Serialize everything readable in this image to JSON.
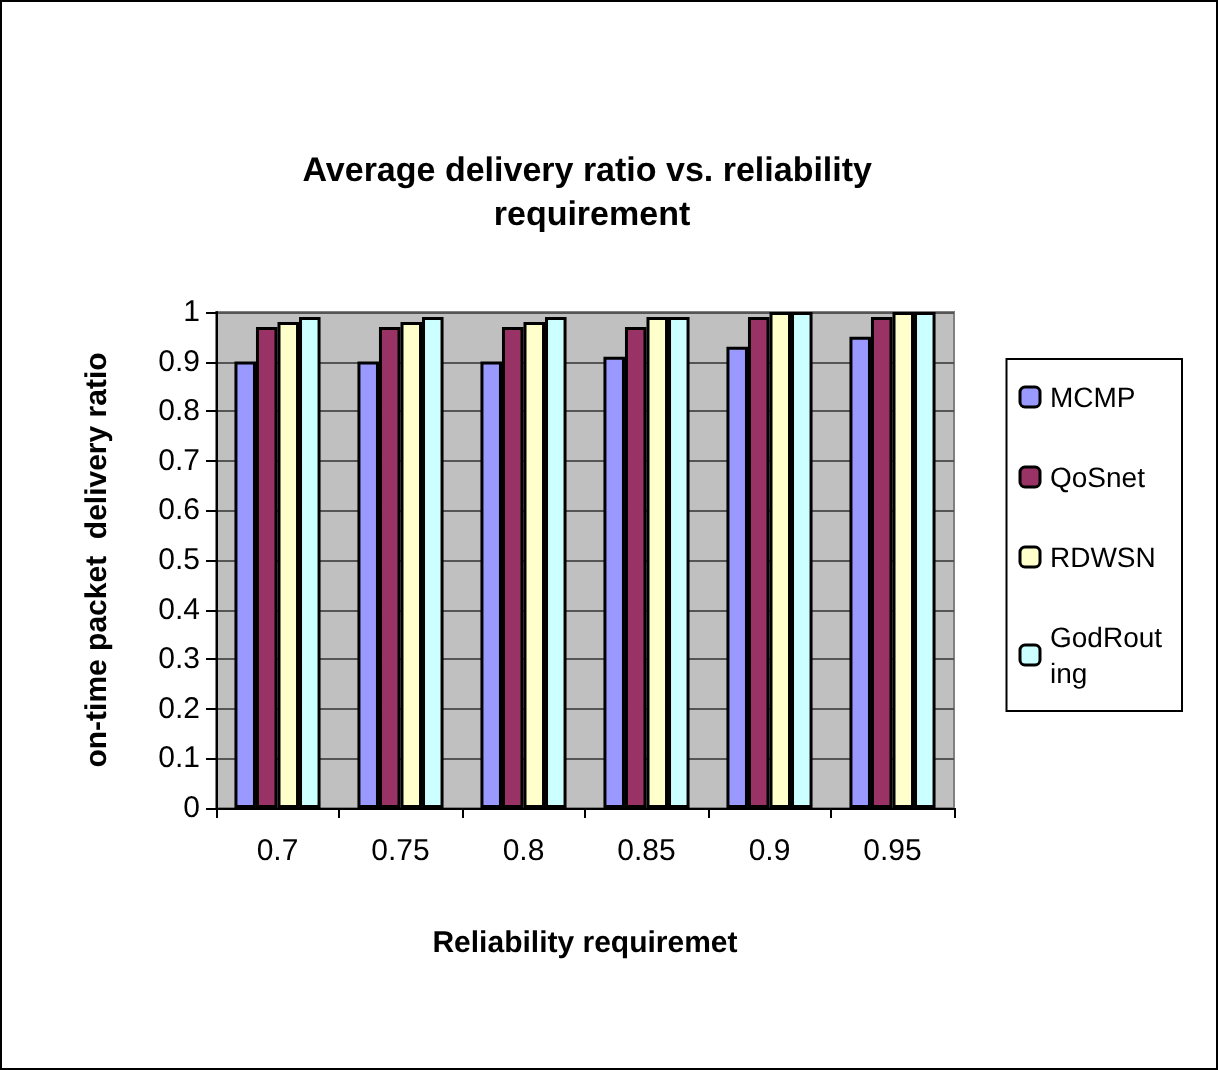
{
  "chart_data": {
    "type": "bar",
    "title": "Average delivery ratio vs. reliability requirement",
    "xlabel": "Reliability requiremet",
    "ylabel": "on-time packet  delivery ratio",
    "categories": [
      "0.7",
      "0.75",
      "0.8",
      "0.85",
      "0.9",
      "0.95"
    ],
    "series": [
      {
        "name": "MCMP",
        "color": "#9999ff",
        "values": [
          0.9,
          0.9,
          0.9,
          0.91,
          0.93,
          0.95
        ]
      },
      {
        "name": "QoSnet",
        "color": "#993366",
        "values": [
          0.97,
          0.97,
          0.97,
          0.97,
          0.99,
          0.99
        ]
      },
      {
        "name": "RDWSN",
        "color": "#ffffcc",
        "values": [
          0.98,
          0.98,
          0.98,
          0.99,
          1,
          1
        ]
      },
      {
        "name": "GodRouting",
        "color": "#ccffff",
        "values": [
          0.99,
          0.99,
          0.99,
          0.99,
          1,
          1
        ]
      }
    ],
    "ylim": [
      0,
      1
    ],
    "yticks": [
      0,
      0.1,
      0.2,
      0.3,
      0.4,
      0.5,
      0.6,
      0.7,
      0.8,
      0.9,
      1
    ],
    "grid": "y",
    "legend": "right"
  }
}
